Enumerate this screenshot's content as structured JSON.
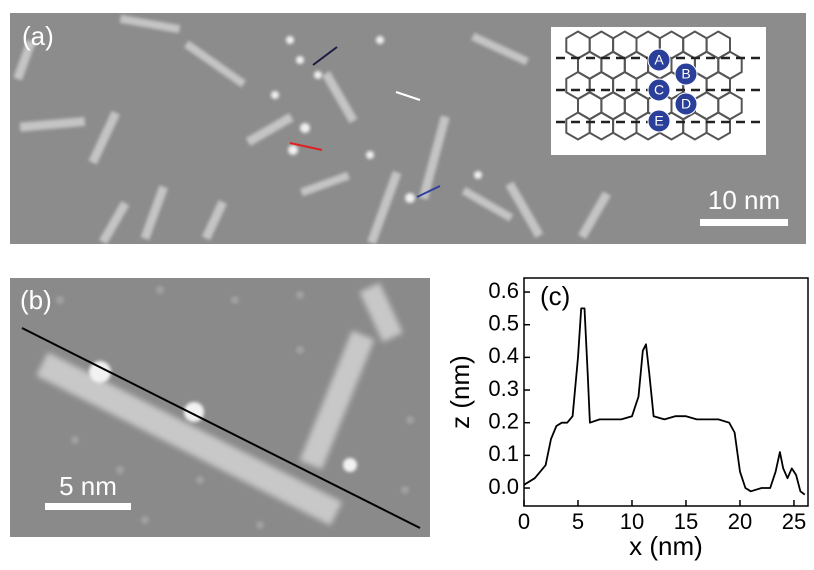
{
  "panels": {
    "a": {
      "label": "(a)",
      "scale_bar": "10 nm",
      "inset_labels": [
        "A",
        "B",
        "C",
        "D",
        "E"
      ]
    },
    "b": {
      "label": "(b)",
      "scale_bar": "5 nm"
    }
  },
  "chart_data": {
    "type": "line",
    "panel_label": "(c)",
    "x_label": "x (nm)",
    "y_label": "z (nm)",
    "x": [
      0,
      1,
      2,
      2.5,
      3,
      3.5,
      4,
      4.5,
      5,
      5.3,
      5.6,
      5.9,
      6.1,
      7,
      8,
      9,
      10,
      10.6,
      11,
      11.3,
      11.6,
      12,
      13,
      14,
      15,
      16,
      17,
      18,
      19,
      19.5,
      20,
      20.5,
      21,
      22,
      22.8,
      23.3,
      23.7,
      24,
      24.4,
      24.8,
      25.2,
      25.6,
      26
    ],
    "series": [
      {
        "color": "#000000",
        "values": [
          0.01,
          0.03,
          0.07,
          0.15,
          0.19,
          0.2,
          0.2,
          0.22,
          0.4,
          0.55,
          0.55,
          0.35,
          0.2,
          0.21,
          0.21,
          0.21,
          0.22,
          0.28,
          0.42,
          0.44,
          0.35,
          0.22,
          0.21,
          0.22,
          0.22,
          0.21,
          0.21,
          0.21,
          0.2,
          0.17,
          0.05,
          0.0,
          -0.01,
          0.0,
          0.0,
          0.05,
          0.11,
          0.06,
          0.03,
          0.06,
          0.04,
          -0.01,
          -0.02
        ]
      }
    ],
    "xlim": [
      0,
      26.3
    ],
    "ylim": [
      -0.055,
      0.643
    ],
    "xticks": [
      0,
      5,
      10,
      15,
      20,
      25
    ],
    "yticks": [
      {
        "value": 0,
        "label": "0.0"
      },
      0.1,
      0.2,
      0.3,
      0.4,
      0.5,
      0.6
    ]
  }
}
